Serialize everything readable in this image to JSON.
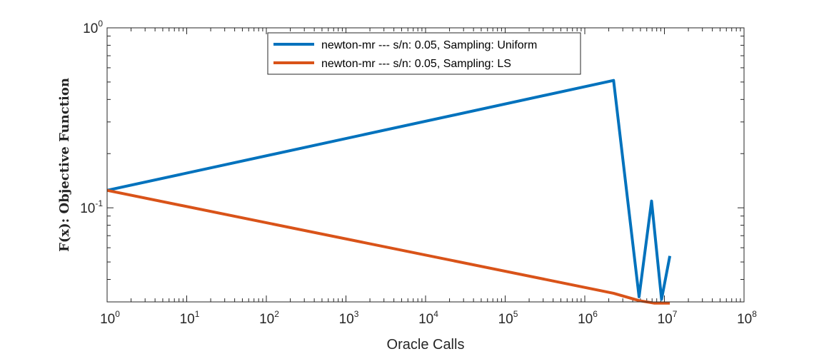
{
  "chart_data": {
    "type": "line",
    "title": "",
    "xlabel": "Oracle Calls",
    "ylabel": "F(x): Objective Function",
    "x_scale": "log",
    "y_scale": "log",
    "xlim": [
      1,
      100000000
    ],
    "ylim": [
      0.03,
      1
    ],
    "x_ticks": [
      {
        "base": "10",
        "exp": "0"
      },
      {
        "base": "10",
        "exp": "1"
      },
      {
        "base": "10",
        "exp": "2"
      },
      {
        "base": "10",
        "exp": "3"
      },
      {
        "base": "10",
        "exp": "4"
      },
      {
        "base": "10",
        "exp": "5"
      },
      {
        "base": "10",
        "exp": "6"
      },
      {
        "base": "10",
        "exp": "7"
      },
      {
        "base": "10",
        "exp": "8"
      }
    ],
    "y_ticks": [
      {
        "value": 1,
        "base": "10",
        "exp": "0"
      },
      {
        "value": 0.1,
        "base": "10",
        "exp": "-1"
      }
    ],
    "legend_position": "top-center",
    "grid": false,
    "series": [
      {
        "name": "newton-mr --- s/n: 0.05, Sampling: Uniform",
        "color": "#0072BD",
        "x": [
          1,
          2300000,
          4800000,
          6900000,
          9200000,
          11700000
        ],
        "y": [
          0.125,
          0.51,
          0.032,
          0.109,
          0.031,
          0.054
        ]
      },
      {
        "name": "newton-mr --- s/n: 0.05, Sampling: LS",
        "color": "#D95319",
        "x": [
          1,
          2300000,
          4800000,
          7500000,
          11700000
        ],
        "y": [
          0.125,
          0.0335,
          0.0305,
          0.0295,
          0.0295
        ]
      }
    ]
  }
}
